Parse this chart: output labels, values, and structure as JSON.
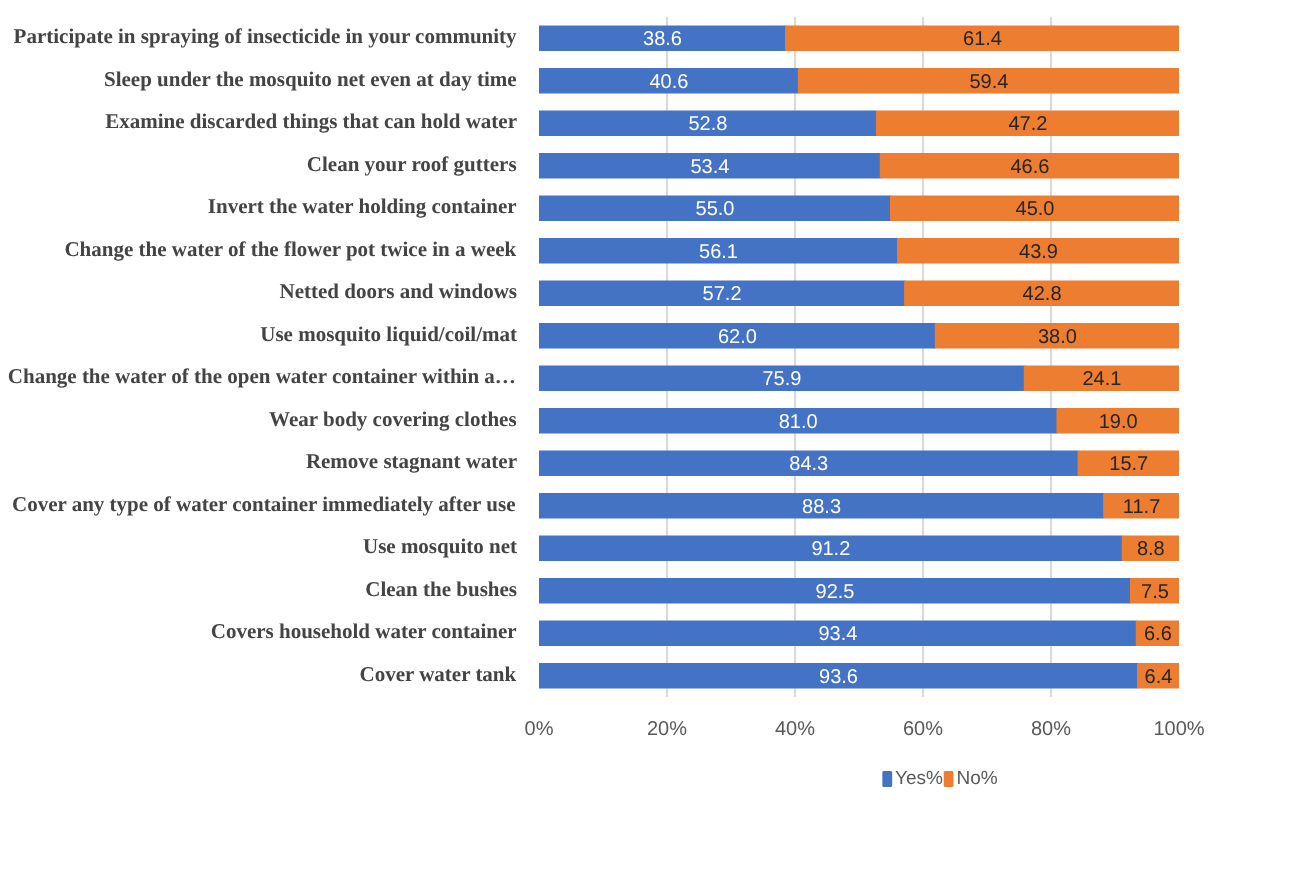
{
  "chart_data": {
    "type": "bar",
    "orientation": "horizontal",
    "stacked": true,
    "data_labels": true,
    "categories": [
      "Participate in spraying of insecticide in your community",
      "Sleep under the mosquito net even at day time",
      "Examine discarded things that can hold water",
      "Clean your roof gutters",
      "Invert the water holding container",
      "Change the water of the flower pot twice in a week",
      "Netted doors and windows",
      "Use mosquito liquid/coil/mat",
      "Change the water of the open water container within a…",
      "Wear body covering clothes",
      "Remove stagnant water",
      "Cover any type of water container immediately after use",
      "Use mosquito net",
      "Clean the bushes",
      "Covers household water container",
      "Cover water tank"
    ],
    "series": [
      {
        "name": "Yes%",
        "color": "#4472c4",
        "values": [
          38.6,
          40.6,
          52.8,
          53.4,
          55.0,
          56.1,
          57.2,
          62.0,
          75.9,
          81.0,
          84.3,
          88.3,
          91.2,
          92.5,
          93.4,
          93.6
        ],
        "value_labels": [
          "38.6",
          "40.6",
          "52.8",
          "53.4",
          "55.0",
          "56.1",
          "57.2",
          "62.0",
          "75.9",
          "81.0",
          "84.3",
          "88.3",
          "91.2",
          "92.5",
          "93.4",
          "93.6"
        ]
      },
      {
        "name": "No%",
        "color": "#ed7d31",
        "values": [
          61.4,
          59.4,
          47.2,
          46.6,
          45.0,
          43.9,
          42.8,
          38.0,
          24.1,
          19.0,
          15.7,
          11.7,
          8.8,
          7.5,
          6.6,
          6.4
        ],
        "value_labels": [
          "61.4",
          "59.4",
          "47.2",
          "46.6",
          "45.0",
          "43.9",
          "42.8",
          "38.0",
          "24.1",
          "19.0",
          "15.7",
          "11.7",
          "8.8",
          "7.5",
          "6.6",
          "6.4"
        ]
      }
    ],
    "xlim": [
      0,
      100
    ],
    "xticks": [
      {
        "value": 0,
        "label": "0%"
      },
      {
        "value": 20,
        "label": "20%"
      },
      {
        "value": 40,
        "label": "40%"
      },
      {
        "value": 60,
        "label": "60%"
      },
      {
        "value": 80,
        "label": "80%"
      },
      {
        "value": 100,
        "label": "100%"
      }
    ],
    "grid": "x",
    "legend": "bottom"
  }
}
